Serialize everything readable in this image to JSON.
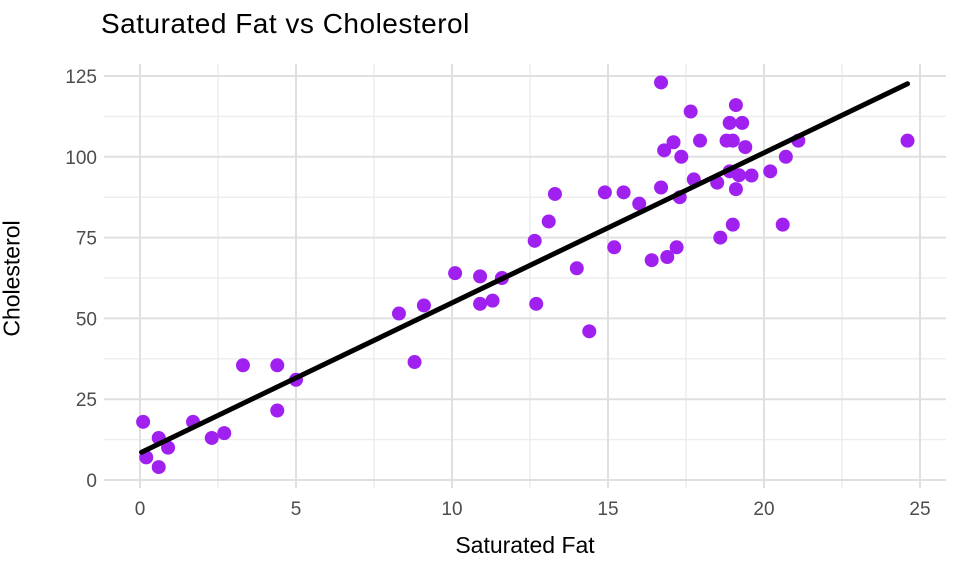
{
  "chart_data": {
    "type": "scatter",
    "title": "Saturated Fat vs Cholesterol",
    "xlabel": "Saturated Fat",
    "ylabel": "Cholesterol",
    "x_ticks": [
      0,
      5,
      10,
      15,
      20,
      25
    ],
    "y_ticks": [
      0,
      25,
      50,
      75,
      100,
      125
    ],
    "x_minor_gridlines": [
      2.5,
      7.5,
      12.5,
      17.5,
      22.5
    ],
    "y_minor_gridlines": [
      12.5,
      37.5,
      62.5,
      87.5,
      112.5
    ],
    "xlim": [
      -1.2,
      25.8
    ],
    "ylim": [
      -2.5,
      128.5
    ],
    "grid": "on",
    "legend_position": "none",
    "point_color": "#A020F0",
    "trend_line_color": "#000000",
    "major_grid_color": "#E0E0E0",
    "minor_grid_color": "#EDEDED",
    "tick_label_color": "#4d4d4d",
    "trend_line": {
      "x1": 0.05,
      "y1": 8.6,
      "x2": 24.6,
      "y2": 122.6
    },
    "points": [
      [
        0.1,
        18
      ],
      [
        0.2,
        7
      ],
      [
        0.6,
        13
      ],
      [
        0.6,
        4
      ],
      [
        0.9,
        10
      ],
      [
        1.7,
        18
      ],
      [
        2.3,
        13
      ],
      [
        2.7,
        14.5
      ],
      [
        3.3,
        35.5
      ],
      [
        4.4,
        35.5
      ],
      [
        4.4,
        21.5
      ],
      [
        5.0,
        31
      ],
      [
        8.3,
        51.5
      ],
      [
        8.8,
        36.5
      ],
      [
        9.1,
        54
      ],
      [
        10.1,
        64
      ],
      [
        10.9,
        63
      ],
      [
        10.9,
        54.5
      ],
      [
        11.3,
        55.5
      ],
      [
        11.6,
        62.5
      ],
      [
        12.65,
        74
      ],
      [
        12.7,
        54.5
      ],
      [
        13.1,
        80
      ],
      [
        13.3,
        88.5
      ],
      [
        14.0,
        65.5
      ],
      [
        14.4,
        46
      ],
      [
        14.9,
        89
      ],
      [
        15.2,
        72
      ],
      [
        15.5,
        89
      ],
      [
        16.0,
        85.5
      ],
      [
        16.4,
        68
      ],
      [
        16.7,
        123
      ],
      [
        16.8,
        102
      ],
      [
        16.7,
        90.5
      ],
      [
        16.9,
        69
      ],
      [
        17.1,
        104.5
      ],
      [
        17.2,
        72
      ],
      [
        17.35,
        100
      ],
      [
        17.3,
        87.5
      ],
      [
        17.65,
        114
      ],
      [
        17.75,
        93
      ],
      [
        17.95,
        105
      ],
      [
        18.5,
        92
      ],
      [
        18.6,
        75
      ],
      [
        18.8,
        105
      ],
      [
        19.0,
        105
      ],
      [
        18.9,
        95.5
      ],
      [
        19.2,
        94.3
      ],
      [
        19.1,
        90
      ],
      [
        19.0,
        79
      ],
      [
        18.9,
        110.5
      ],
      [
        19.3,
        110.5
      ],
      [
        19.1,
        116
      ],
      [
        19.4,
        103
      ],
      [
        19.6,
        94.2
      ],
      [
        20.2,
        95.5
      ],
      [
        20.6,
        79
      ],
      [
        20.7,
        100
      ],
      [
        21.1,
        105
      ],
      [
        24.6,
        105
      ]
    ]
  }
}
